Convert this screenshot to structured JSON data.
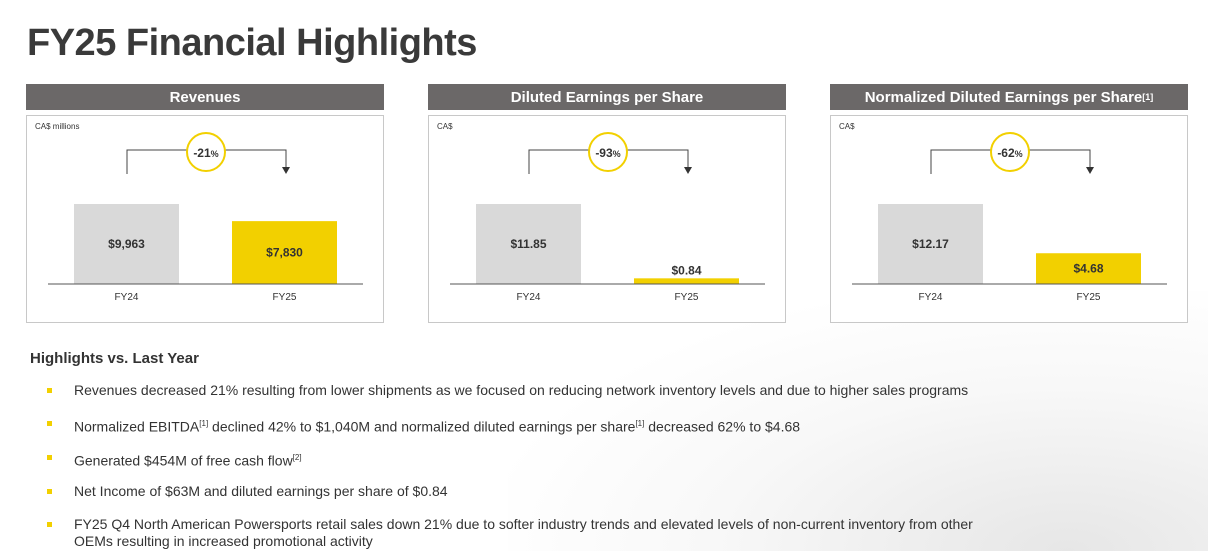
{
  "page": {
    "title": "FY25 Financial Highlights"
  },
  "colors": {
    "header_bg": "#6b6868",
    "accent_yellow": "#f2d000",
    "bar_gray": "#d9d9d9"
  },
  "panels": [
    {
      "title": "Revenues",
      "title_sup": "",
      "unit": "CA$ millions",
      "change": "-21",
      "change_suffix": "%",
      "chart_data": {
        "type": "bar",
        "categories": [
          "FY24",
          "FY25"
        ],
        "values": [
          9963,
          7830
        ],
        "labels": [
          "$9,963",
          "$7,830"
        ]
      }
    },
    {
      "title": "Diluted Earnings per Share",
      "title_sup": "",
      "unit": "CA$",
      "change": "-93",
      "change_suffix": "%",
      "chart_data": {
        "type": "bar",
        "categories": [
          "FY24",
          "FY25"
        ],
        "values": [
          11.85,
          0.84
        ],
        "labels": [
          "$11.85",
          "$0.84"
        ]
      }
    },
    {
      "title": "Normalized Diluted Earnings per Share",
      "title_sup": "[1]",
      "unit": "CA$",
      "change": "-62",
      "change_suffix": "%",
      "chart_data": {
        "type": "bar",
        "categories": [
          "FY24",
          "FY25"
        ],
        "values": [
          12.17,
          4.68
        ],
        "labels": [
          "$12.17",
          "$4.68"
        ]
      }
    }
  ],
  "highlights": {
    "title": "Highlights vs. Last Year",
    "items": [
      {
        "parts": [
          "Revenues decreased 21% resulting from lower shipments as we focused on reducing network inventory levels and due to higher sales programs"
        ]
      },
      {
        "parts": [
          "Normalized EBITDA",
          "[1]",
          " declined 42% to $1,040M and normalized diluted earnings per share",
          "[1]",
          " decreased 62% to $4.68"
        ]
      },
      {
        "parts": [
          "Generated $454M of free cash flow",
          "[2]"
        ]
      },
      {
        "parts": [
          "Net Income of $63M and diluted earnings per share of $0.84"
        ]
      },
      {
        "parts": [
          "FY25 Q4 North American Powersports retail sales down 21% due to softer industry trends and elevated levels of non-current inventory from other OEMs resulting in increased promotional activity"
        ]
      }
    ]
  }
}
